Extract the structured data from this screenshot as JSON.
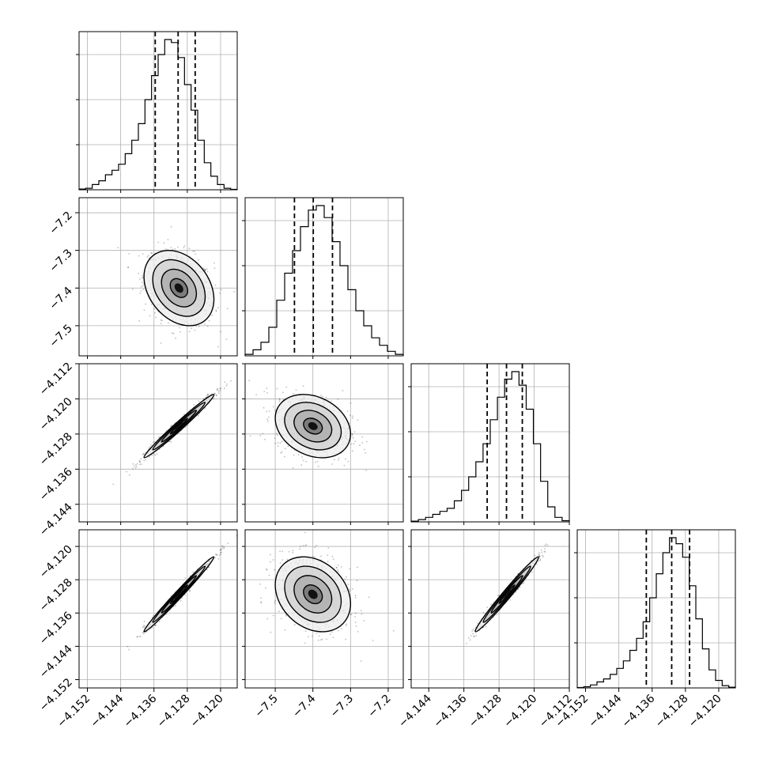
{
  "chart_data": {
    "type": "corner",
    "grid": true,
    "parameters": [
      {
        "range": [
          -4.154,
          -4.116
        ],
        "ticks": [
          -4.152,
          -4.144,
          -4.136,
          -4.128,
          -4.12
        ],
        "tick_labels": [
          "−4.152",
          "−4.144",
          "−4.136",
          "−4.128",
          "−4.120"
        ],
        "quantiles": [
          -4.1357,
          -4.1302,
          -4.1261
        ],
        "hist": [
          0.005,
          0.01,
          0.035,
          0.06,
          0.1,
          0.13,
          0.17,
          0.24,
          0.33,
          0.44,
          0.6,
          0.76,
          0.9,
          1.0,
          0.98,
          0.88,
          0.7,
          0.53,
          0.33,
          0.18,
          0.09,
          0.035,
          0.01,
          0.003
        ]
      },
      {
        "range": [
          -7.58,
          -7.16
        ],
        "ticks": [
          -7.5,
          -7.4,
          -7.3,
          -7.2
        ],
        "tick_labels": [
          "−7.5",
          "−7.4",
          "−7.3",
          "−7.2"
        ],
        "quantiles": [
          -7.449,
          -7.399,
          -7.348
        ],
        "hist": [
          0.01,
          0.04,
          0.09,
          0.19,
          0.37,
          0.55,
          0.7,
          0.86,
          0.97,
          1.0,
          0.92,
          0.76,
          0.6,
          0.44,
          0.3,
          0.2,
          0.12,
          0.07,
          0.03,
          0.01
        ]
      },
      {
        "range": [
          -4.148,
          -4.112
        ],
        "ticks": [
          -4.144,
          -4.136,
          -4.128,
          -4.12,
          -4.112
        ],
        "tick_labels": [
          "−4.144",
          "−4.136",
          "−4.128",
          "−4.120",
          "−4.112"
        ],
        "quantiles": [
          -4.1307,
          -4.1263,
          -4.1227
        ],
        "hist": [
          0.005,
          0.015,
          0.03,
          0.05,
          0.07,
          0.09,
          0.14,
          0.21,
          0.3,
          0.4,
          0.52,
          0.68,
          0.83,
          0.95,
          1.0,
          0.91,
          0.75,
          0.52,
          0.27,
          0.1,
          0.03,
          0.008
        ]
      },
      {
        "range": [
          -4.154,
          -4.116
        ],
        "ticks": [
          -4.152,
          -4.144,
          -4.136,
          -4.128,
          -4.12
        ],
        "tick_labels": [
          "−4.152",
          "−4.144",
          "−4.136",
          "−4.128",
          "−4.120"
        ],
        "quantiles": [
          -4.1374,
          -4.1313,
          -4.127
        ],
        "hist": [
          0.003,
          0.008,
          0.02,
          0.04,
          0.06,
          0.09,
          0.13,
          0.18,
          0.25,
          0.33,
          0.44,
          0.6,
          0.76,
          0.9,
          1.0,
          0.96,
          0.87,
          0.68,
          0.46,
          0.26,
          0.12,
          0.05,
          0.015,
          0.005
        ]
      }
    ],
    "hist_y_ticks": [
      0.3,
      0.6,
      0.9
    ],
    "pairs": [
      {
        "row": 1,
        "col": 0,
        "mean": [
          -4.13,
          -7.4
        ],
        "sd": [
          0.0042,
          0.05
        ],
        "corr": -0.3,
        "n": 700
      },
      {
        "row": 2,
        "col": 0,
        "mean": [
          -4.13,
          -4.1262
        ],
        "sd": [
          0.0042,
          0.0036
        ],
        "corr": 0.985,
        "n": 700
      },
      {
        "row": 2,
        "col": 1,
        "mean": [
          -7.4,
          -4.1262
        ],
        "sd": [
          0.05,
          0.0036
        ],
        "corr": -0.25,
        "n": 700
      },
      {
        "row": 3,
        "col": 0,
        "mean": [
          -4.13,
          -4.1315
        ],
        "sd": [
          0.0042,
          0.0045
        ],
        "corr": 0.99,
        "n": 700
      },
      {
        "row": 3,
        "col": 1,
        "mean": [
          -7.4,
          -4.1315
        ],
        "sd": [
          0.05,
          0.0045
        ],
        "corr": -0.25,
        "n": 700
      },
      {
        "row": 3,
        "col": 2,
        "mean": [
          -4.1262,
          -4.1315
        ],
        "sd": [
          0.0036,
          0.0045
        ],
        "corr": 0.985,
        "n": 700
      }
    ],
    "contour_sigmas": [
      0.5,
      1.0,
      1.5,
      2.0
    ]
  }
}
